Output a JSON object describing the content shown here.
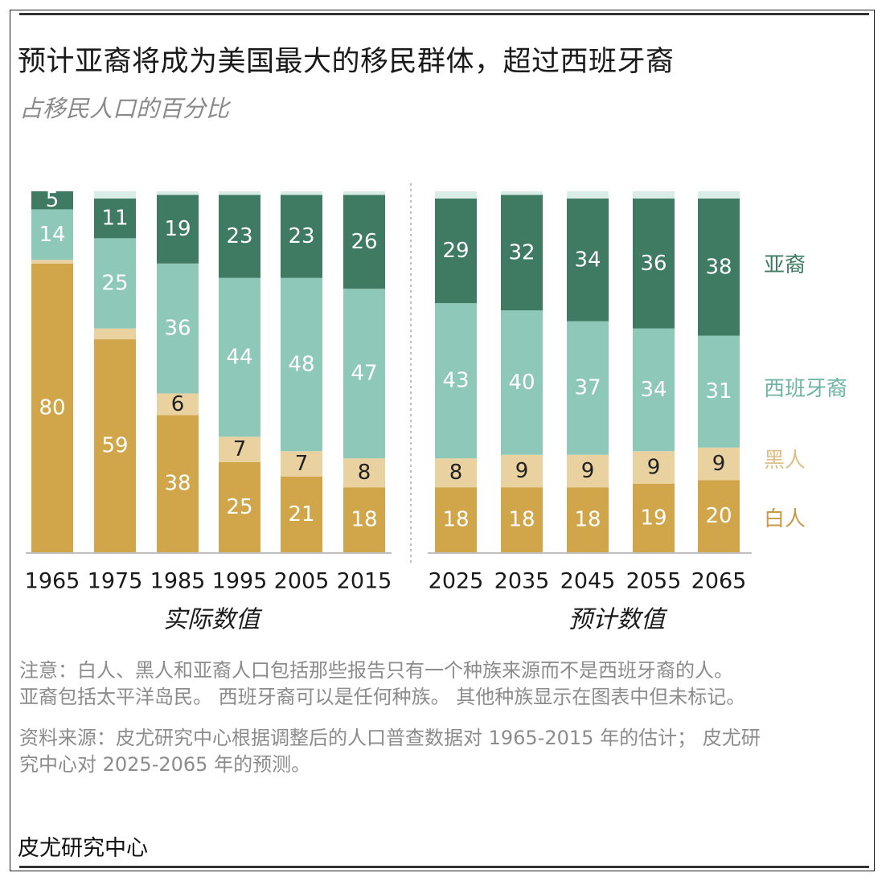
{
  "title": "预计亚裔将成为美国最大的移民群体，超过西班牙裔",
  "subtitle": "占移民人口的百分比",
  "colors": {
    "asian": "#3f7b63",
    "hispanic": "#8ec8b9",
    "black": "#ead1a0",
    "white": "#d1a64b",
    "axis": "#aaaaaa",
    "divider": "#aaaaaa",
    "legend_asian": "#3f7b63",
    "legend_hispanic": "#6fb5a6",
    "legend_black": "#dcc089",
    "legend_white": "#c89a46",
    "label_light": "#ffffff",
    "label_dark": "#222222"
  },
  "chart_data": {
    "type": "bar",
    "stacked": true,
    "categories": [
      "1965",
      "1975",
      "1985",
      "1995",
      "2005",
      "2015",
      "2025",
      "2035",
      "2045",
      "2055",
      "2065"
    ],
    "groups": [
      {
        "label": "实际数值",
        "categories": [
          "1965",
          "1975",
          "1985",
          "1995",
          "2005",
          "2015"
        ]
      },
      {
        "label": "预计数值",
        "categories": [
          "2025",
          "2035",
          "2045",
          "2055",
          "2065"
        ]
      }
    ],
    "series": [
      {
        "key": "white",
        "name": "白人",
        "values": [
          80,
          59,
          38,
          25,
          21,
          18,
          18,
          18,
          18,
          19,
          20
        ],
        "label_color": "light"
      },
      {
        "key": "black",
        "name": "黑人",
        "values": [
          1,
          3,
          6,
          7,
          7,
          8,
          8,
          9,
          9,
          9,
          9
        ],
        "label_color": "dark",
        "labels": [
          "",
          "",
          "6",
          "7",
          "7",
          "8",
          "8",
          "9",
          "9",
          "9",
          "9"
        ]
      },
      {
        "key": "hispanic",
        "name": "西班牙裔",
        "values": [
          14,
          25,
          36,
          44,
          48,
          47,
          43,
          40,
          37,
          34,
          31
        ],
        "label_color": "light"
      },
      {
        "key": "asian",
        "name": "亚裔",
        "values": [
          5,
          11,
          19,
          23,
          23,
          26,
          29,
          32,
          34,
          36,
          38
        ],
        "label_color": "light"
      }
    ],
    "legend": [
      "亚裔",
      "西班牙裔",
      "黑人",
      "白人"
    ],
    "ylim": [
      0,
      100
    ]
  },
  "note": "注意：白人、黑人和亚裔人口包括那些报告只有一个种族来源而不是西班牙裔的人。亚裔包括太平洋岛民。 西班牙裔可以是任何种族。 其他种族显示在图表中但未标记。",
  "note_line1": "注意：白人、黑人和亚裔人口包括那些报告只有一个种族来源而不是西班牙裔的人。",
  "note_line2": "亚裔包括太平洋岛民。 西班牙裔可以是任何种族。 其他种族显示在图表中但未标记。",
  "source_line1": "资料来源：皮尤研究中心根据调整后的人口普查数据对 1965-2015 年的估计； 皮尤研",
  "source_line2": "究中心对 2025-2065 年的预测。",
  "brand": "皮尤研究中心"
}
